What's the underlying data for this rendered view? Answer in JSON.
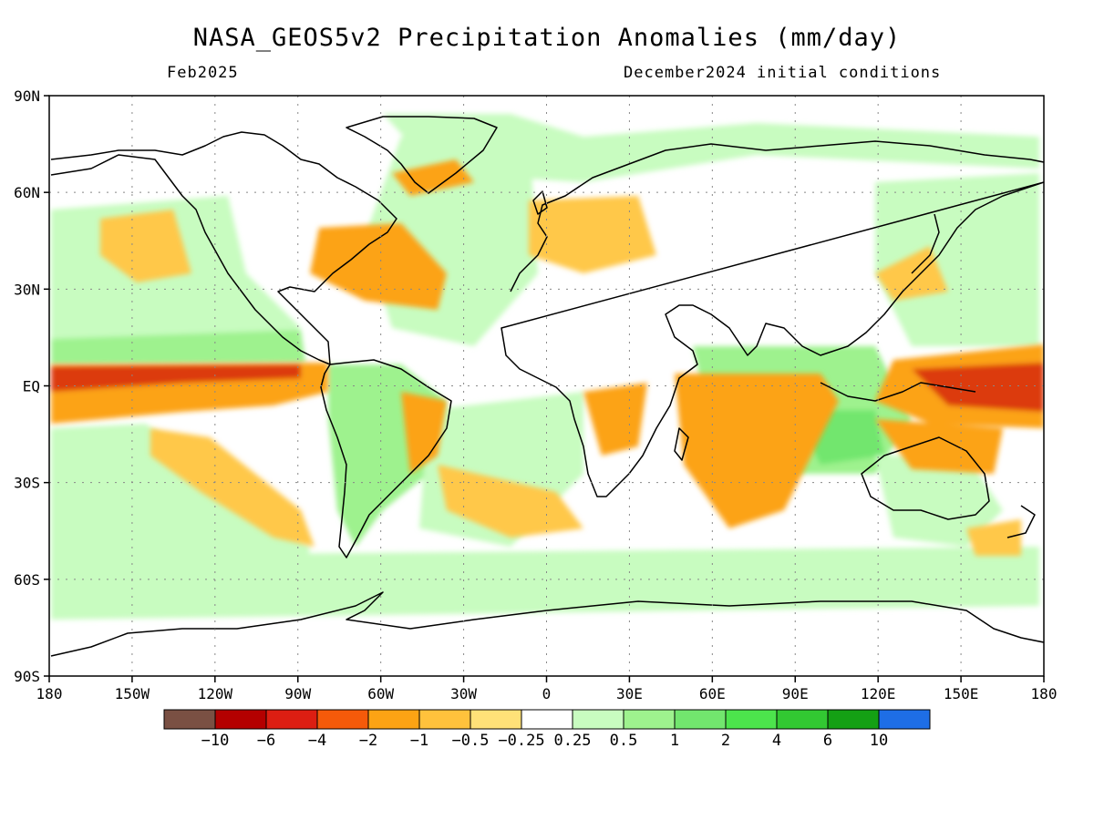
{
  "title": "NASA_GEOS5v2 Precipitation Anomalies (mm/day)",
  "valid_month": "Feb2025",
  "initial_conditions": "December2024 initial conditions",
  "map": {
    "lon_range": [
      -180,
      180
    ],
    "lat_range": [
      -90,
      90
    ],
    "lat_ticks": [
      {
        "value": 90,
        "label": "90N"
      },
      {
        "value": 60,
        "label": "60N"
      },
      {
        "value": 30,
        "label": "30N"
      },
      {
        "value": 0,
        "label": "EQ"
      },
      {
        "value": -30,
        "label": "30S"
      },
      {
        "value": -60,
        "label": "60S"
      },
      {
        "value": -90,
        "label": "90S"
      }
    ],
    "lon_ticks": [
      {
        "value": -180,
        "label": "180"
      },
      {
        "value": -150,
        "label": "150W"
      },
      {
        "value": -120,
        "label": "120W"
      },
      {
        "value": -90,
        "label": "90W"
      },
      {
        "value": -60,
        "label": "60W"
      },
      {
        "value": -30,
        "label": "30W"
      },
      {
        "value": 0,
        "label": "0"
      },
      {
        "value": 30,
        "label": "30E"
      },
      {
        "value": 60,
        "label": "60E"
      },
      {
        "value": 90,
        "label": "90E"
      },
      {
        "value": 120,
        "label": "120E"
      },
      {
        "value": 150,
        "label": "150E"
      },
      {
        "value": 180,
        "label": "180"
      }
    ],
    "grid": true
  },
  "colorbar": {
    "colors": [
      "#7a5043",
      "#b40000",
      "#dc1e12",
      "#f55a0a",
      "#fca314",
      "#ffc23c",
      "#ffe178",
      "#ffffff",
      "#c8fcc0",
      "#9ef28e",
      "#72e66e",
      "#4ce44c",
      "#32c832",
      "#14a014",
      "#1e6ee6"
    ],
    "labels": [
      "-10",
      "-6",
      "-4",
      "-2",
      "-1",
      "-0.5",
      "-0.25",
      "0.25",
      "0.5",
      "1",
      "2",
      "4",
      "6",
      "10"
    ]
  },
  "anomaly_colors": {
    "strong_dry": "#dc3a10",
    "dry": "#fca314",
    "weak_dry": "#ffc84a",
    "weak_wet": "#c8fcc0",
    "wet": "#9ef28e",
    "strong_wet": "#4ce44c"
  }
}
